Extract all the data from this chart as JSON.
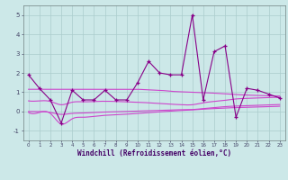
{
  "x": [
    0,
    1,
    2,
    3,
    4,
    5,
    6,
    7,
    8,
    9,
    10,
    11,
    12,
    13,
    14,
    15,
    16,
    17,
    18,
    19,
    20,
    21,
    22,
    23
  ],
  "y_main": [
    1.9,
    1.2,
    0.6,
    -0.6,
    1.1,
    0.6,
    0.6,
    1.1,
    0.6,
    0.6,
    1.5,
    2.6,
    2.0,
    1.9,
    1.9,
    5.0,
    0.6,
    3.1,
    3.4,
    -0.3,
    1.2,
    1.1,
    0.9,
    0.7
  ],
  "trend1_x": [
    0,
    1,
    2,
    3,
    4,
    5,
    6,
    7,
    8,
    9,
    10,
    11,
    12,
    13,
    14,
    15,
    16,
    17,
    18,
    19,
    20,
    21,
    22,
    23
  ],
  "trend1_y": [
    1.15,
    1.15,
    1.15,
    1.15,
    1.15,
    1.15,
    1.15,
    1.15,
    1.15,
    1.15,
    1.15,
    1.12,
    1.1,
    1.05,
    1.02,
    1.0,
    0.98,
    0.95,
    0.92,
    0.88,
    0.85,
    0.83,
    0.81,
    0.8
  ],
  "trend2_x": [
    0,
    1,
    2,
    3,
    4,
    5,
    6,
    7,
    8,
    9,
    10,
    11,
    12,
    13,
    14,
    15,
    16,
    17,
    18,
    19,
    20,
    21,
    22,
    23
  ],
  "trend2_y": [
    0.55,
    0.55,
    0.52,
    0.35,
    0.48,
    0.5,
    0.52,
    0.53,
    0.52,
    0.5,
    0.48,
    0.45,
    0.42,
    0.38,
    0.35,
    0.35,
    0.45,
    0.52,
    0.58,
    0.65,
    0.68,
    0.7,
    0.72,
    0.74
  ],
  "trend3_x": [
    0,
    1,
    2,
    3,
    4,
    5,
    6,
    7,
    8,
    9,
    10,
    11,
    12,
    13,
    14,
    15,
    16,
    17,
    18,
    19,
    20,
    21,
    22,
    23
  ],
  "trend3_y": [
    0.0,
    0.0,
    -0.05,
    -0.15,
    -0.1,
    -0.08,
    -0.05,
    -0.03,
    -0.02,
    0.0,
    0.02,
    0.04,
    0.06,
    0.08,
    0.09,
    0.1,
    0.15,
    0.2,
    0.25,
    0.28,
    0.3,
    0.32,
    0.34,
    0.36
  ],
  "trend4_x": [
    0,
    1,
    2,
    3,
    4,
    5,
    6,
    7,
    8,
    9,
    10,
    11,
    12,
    13,
    14,
    15,
    16,
    17,
    18,
    19,
    20,
    21,
    22,
    23
  ],
  "trend4_y": [
    -0.05,
    -0.05,
    -0.1,
    -0.65,
    -0.38,
    -0.3,
    -0.25,
    -0.2,
    -0.17,
    -0.14,
    -0.1,
    -0.06,
    -0.02,
    0.02,
    0.05,
    0.08,
    0.12,
    0.15,
    0.18,
    0.2,
    0.22,
    0.24,
    0.25,
    0.27
  ],
  "line_color_main": "#880088",
  "line_color_trend_top": "#cc44cc",
  "line_color_trend_mid": "#cc44cc",
  "line_color_trend_low1": "#cc44cc",
  "line_color_trend_low2": "#cc44cc",
  "bg_color": "#cce8e8",
  "grid_color": "#aacccc",
  "xlabel": "Windchill (Refroidissement éolien,°C)",
  "ylim": [
    -1.5,
    5.5
  ],
  "xlim": [
    -0.5,
    23.5
  ],
  "yticks": [
    -1,
    0,
    1,
    2,
    3,
    4,
    5
  ],
  "fig_width": 3.2,
  "fig_height": 2.0,
  "dpi": 100
}
